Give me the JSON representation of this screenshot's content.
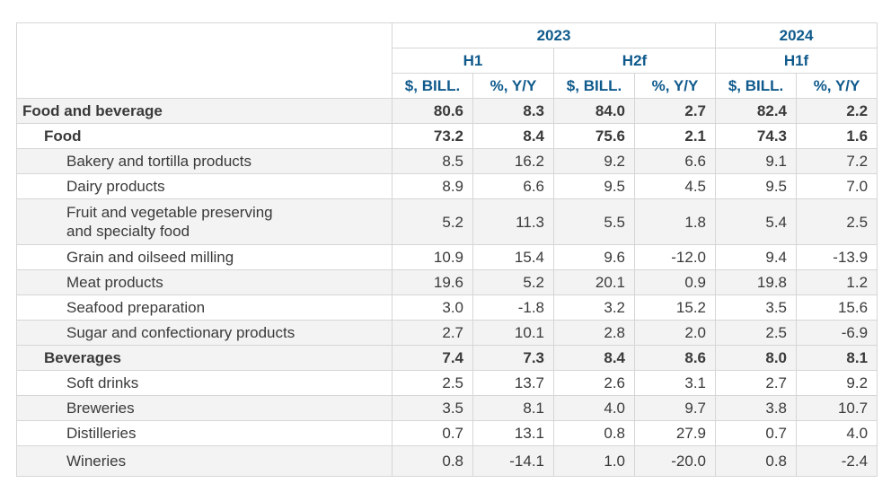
{
  "headers": {
    "years": [
      "2023",
      "2024"
    ],
    "periods": [
      "H1",
      "H2f",
      "H1f"
    ],
    "units": [
      "$, BILL.",
      "%, Y/Y",
      "$, BILL.",
      "%, Y/Y",
      "$, BILL.",
      "%, Y/Y"
    ]
  },
  "rows": [
    {
      "label": "Food and beverage",
      "values": [
        "80.6",
        "8.3",
        "84.0",
        "2.7",
        "82.4",
        "2.2"
      ]
    },
    {
      "label": "Food",
      "values": [
        "73.2",
        "8.4",
        "75.6",
        "2.1",
        "74.3",
        "1.6"
      ]
    },
    {
      "label": "Bakery and tortilla products",
      "values": [
        "8.5",
        "16.2",
        "9.2",
        "6.6",
        "9.1",
        "7.2"
      ]
    },
    {
      "label": "Dairy products",
      "values": [
        "8.9",
        "6.6",
        "9.5",
        "4.5",
        "9.5",
        "7.0"
      ]
    },
    {
      "label": "Fruit and vegetable preserving and specialty food",
      "values": [
        "5.2",
        "11.3",
        "5.5",
        "1.8",
        "5.4",
        "2.5"
      ]
    },
    {
      "label": "Grain and oilseed milling",
      "values": [
        "10.9",
        "15.4",
        "9.6",
        "-12.0",
        "9.4",
        "-13.9"
      ]
    },
    {
      "label": "Meat products",
      "values": [
        "19.6",
        "5.2",
        "20.1",
        "0.9",
        "19.8",
        "1.2"
      ]
    },
    {
      "label": "Seafood preparation",
      "values": [
        "3.0",
        "-1.8",
        "3.2",
        "15.2",
        "3.5",
        "15.6"
      ]
    },
    {
      "label": "Sugar and confectionary products",
      "values": [
        "2.7",
        "10.1",
        "2.8",
        "2.0",
        "2.5",
        "-6.9"
      ]
    },
    {
      "label": "Beverages",
      "values": [
        "7.4",
        "7.3",
        "8.4",
        "8.6",
        "8.0",
        "8.1"
      ]
    },
    {
      "label": "Soft drinks",
      "values": [
        "2.5",
        "13.7",
        "2.6",
        "3.1",
        "2.7",
        "9.2"
      ]
    },
    {
      "label": "Breweries",
      "values": [
        "3.5",
        "8.1",
        "4.0",
        "9.7",
        "3.8",
        "10.7"
      ]
    },
    {
      "label": "Distilleries",
      "values": [
        "0.7",
        "13.1",
        "0.8",
        "27.9",
        "0.7",
        "4.0"
      ]
    },
    {
      "label": "Wineries",
      "values": [
        "0.8",
        "-14.1",
        "1.0",
        "-20.0",
        "0.8",
        "-2.4"
      ]
    }
  ]
}
